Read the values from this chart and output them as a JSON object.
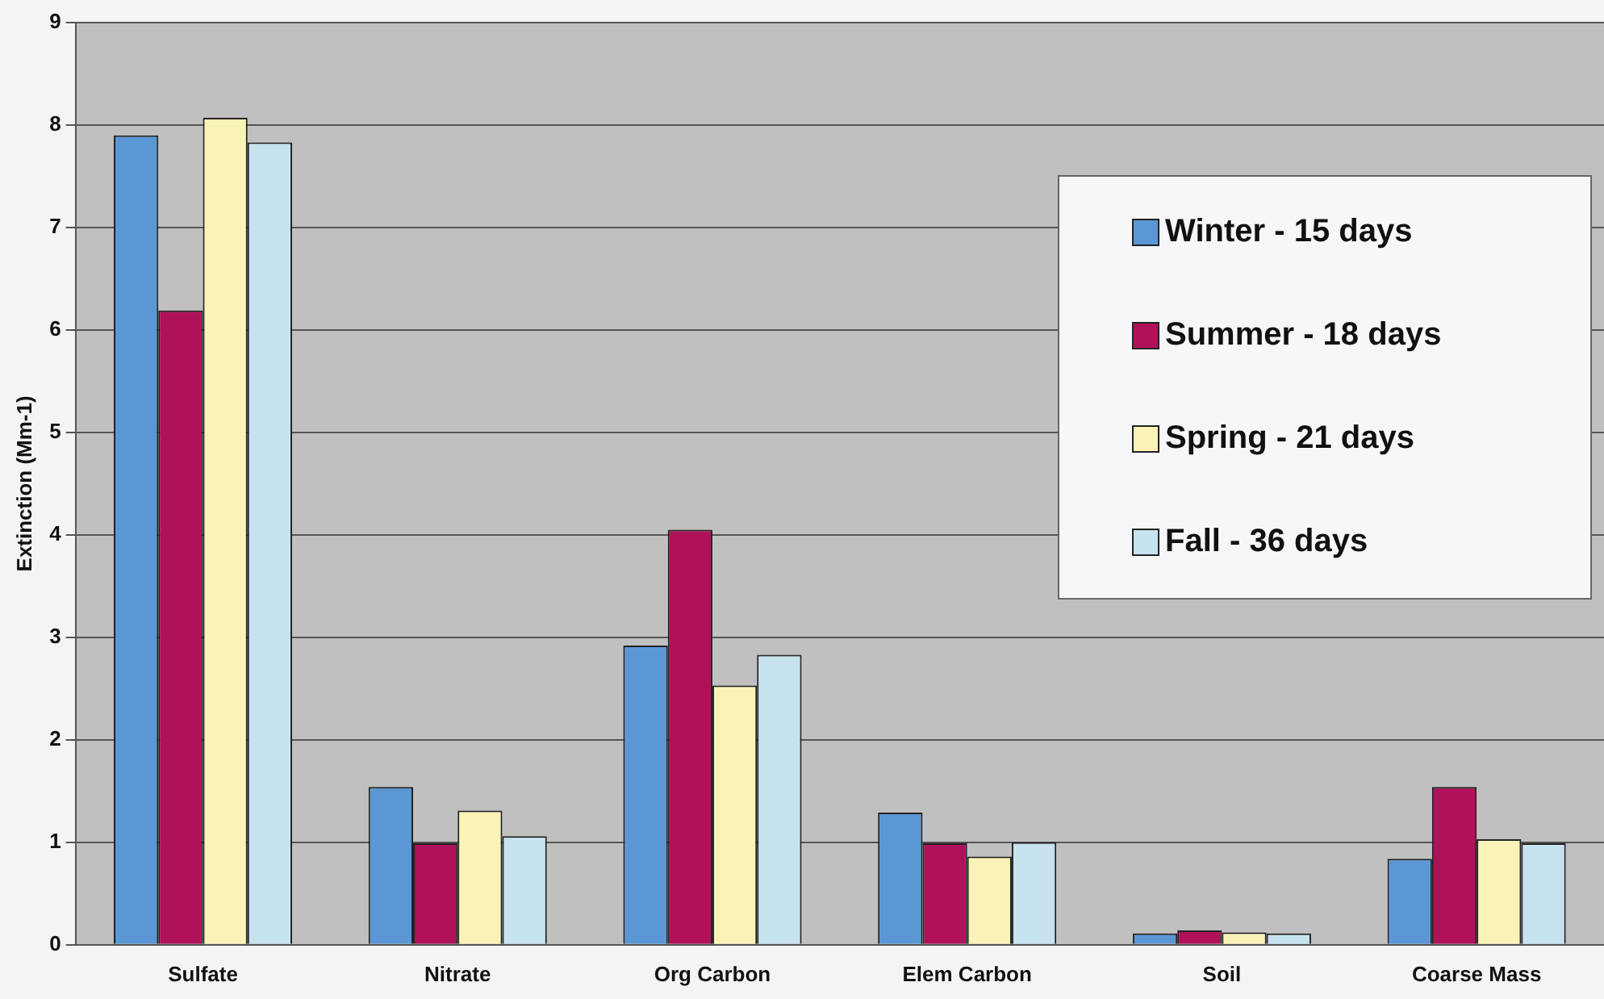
{
  "chart_data": {
    "type": "bar",
    "ylabel": "Extinction (Mm-1)",
    "categories": [
      "Sulfate",
      "Nitrate",
      "Org Carbon",
      "Elem Carbon",
      "Soil",
      "Coarse Mass"
    ],
    "series": [
      {
        "name": "Winter - 15 days",
        "color": "#5b97d5",
        "values": [
          7.9,
          1.54,
          2.92,
          1.29,
          0.11,
          0.84
        ]
      },
      {
        "name": "Summer - 18 days",
        "color": "#b0125a",
        "values": [
          6.19,
          0.99,
          4.05,
          0.99,
          0.14,
          1.54
        ]
      },
      {
        "name": "Spring - 21 days",
        "color": "#faf3b8",
        "values": [
          8.07,
          1.31,
          2.53,
          0.86,
          0.12,
          1.03
        ]
      },
      {
        "name": "Fall - 36 days",
        "color": "#c7e3ef",
        "values": [
          7.83,
          1.06,
          2.83,
          1.0,
          0.11,
          0.99
        ]
      }
    ],
    "ylim": [
      0,
      9
    ],
    "yticks": [
      0,
      1,
      2,
      3,
      4,
      5,
      6,
      7,
      8,
      9
    ],
    "grid": "y",
    "legend": "top right"
  }
}
